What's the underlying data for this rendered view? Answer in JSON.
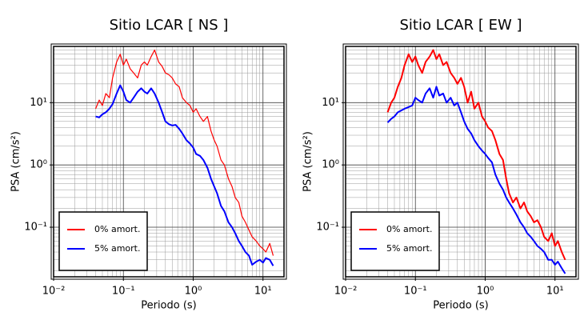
{
  "chart_data": [
    {
      "type": "line",
      "title": "Sitio LCAR [ NS ]",
      "xlabel": "Periodo (s)",
      "ylabel": "PSA (cm/s²)",
      "xscale": "log",
      "yscale": "log",
      "grid": true,
      "legend": "lower left",
      "xlim": [
        0.01,
        20
      ],
      "ylim": [
        0.016,
        80
      ],
      "xticks": [
        {
          "value": 0.01,
          "label": "10⁻²"
        },
        {
          "value": 0.1,
          "label": "10⁻¹"
        },
        {
          "value": 1,
          "label": "10⁰"
        },
        {
          "value": 10,
          "label": "10¹"
        }
      ],
      "yticks": [
        {
          "value": 0.1,
          "label": "10⁻¹"
        },
        {
          "value": 1,
          "label": "10⁰"
        },
        {
          "value": 10,
          "label": "10¹"
        }
      ],
      "x": [
        0.04,
        0.045,
        0.05,
        0.056,
        0.063,
        0.07,
        0.08,
        0.09,
        0.1,
        0.11,
        0.125,
        0.14,
        0.16,
        0.18,
        0.2,
        0.22,
        0.25,
        0.28,
        0.32,
        0.36,
        0.4,
        0.45,
        0.5,
        0.56,
        0.63,
        0.7,
        0.8,
        0.9,
        1.0,
        1.1,
        1.25,
        1.4,
        1.6,
        1.8,
        2.0,
        2.2,
        2.5,
        2.8,
        3.2,
        3.6,
        4.0,
        4.5,
        5.0,
        5.6,
        6.3,
        7.0,
        8.0,
        9.0,
        10,
        11,
        12.5,
        14
      ],
      "series": [
        {
          "name": "0% amort.",
          "color": "#ff0000",
          "width": 1.2,
          "values": [
            8,
            11,
            9,
            14,
            12,
            25,
            45,
            60,
            40,
            50,
            35,
            30,
            25,
            40,
            45,
            40,
            55,
            70,
            45,
            38,
            30,
            28,
            25,
            20,
            18,
            12,
            10,
            9,
            7,
            8,
            6,
            5,
            6,
            3.5,
            2.5,
            2.0,
            1.2,
            1.0,
            0.6,
            0.45,
            0.3,
            0.25,
            0.15,
            0.12,
            0.09,
            0.07,
            0.06,
            0.05,
            0.045,
            0.04,
            0.055,
            0.035
          ]
        },
        {
          "name": "5% amort.",
          "color": "#0000ff",
          "width": 2,
          "values": [
            6,
            5.8,
            6.5,
            7,
            8,
            9.5,
            14,
            19,
            15,
            11,
            10,
            12,
            15,
            17,
            15,
            14,
            17,
            14,
            10,
            7,
            5,
            4.5,
            4.3,
            4.4,
            3.8,
            3.2,
            2.5,
            2.2,
            1.9,
            1.5,
            1.4,
            1.2,
            0.9,
            0.6,
            0.45,
            0.35,
            0.22,
            0.18,
            0.12,
            0.1,
            0.08,
            0.06,
            0.05,
            0.04,
            0.035,
            0.025,
            0.028,
            0.03,
            0.027,
            0.032,
            0.03,
            0.024
          ]
        }
      ]
    },
    {
      "type": "line",
      "title": "Sitio LCAR [ EW ]",
      "xlabel": "Periodo (s)",
      "ylabel": "PSA (cm/s²)",
      "xscale": "log",
      "yscale": "log",
      "grid": true,
      "legend": "lower left",
      "xlim": [
        0.01,
        20
      ],
      "ylim": [
        0.016,
        80
      ],
      "xticks": [
        {
          "value": 0.01,
          "label": "10⁻²"
        },
        {
          "value": 0.1,
          "label": "10⁻¹"
        },
        {
          "value": 1,
          "label": "10⁰"
        },
        {
          "value": 10,
          "label": "10¹"
        }
      ],
      "yticks": [
        {
          "value": 0.1,
          "label": "10⁻¹"
        },
        {
          "value": 1,
          "label": "10⁰"
        },
        {
          "value": 10,
          "label": "10¹"
        }
      ],
      "x": [
        0.04,
        0.045,
        0.05,
        0.056,
        0.063,
        0.07,
        0.08,
        0.09,
        0.1,
        0.11,
        0.125,
        0.14,
        0.16,
        0.18,
        0.2,
        0.22,
        0.25,
        0.28,
        0.32,
        0.36,
        0.4,
        0.45,
        0.5,
        0.56,
        0.63,
        0.7,
        0.8,
        0.9,
        1.0,
        1.1,
        1.25,
        1.4,
        1.6,
        1.8,
        2.0,
        2.2,
        2.5,
        2.8,
        3.2,
        3.6,
        4.0,
        4.5,
        5.0,
        5.6,
        6.3,
        7.0,
        8.0,
        9.0,
        10,
        11,
        12.5,
        14
      ],
      "series": [
        {
          "name": "0% amort.",
          "color": "#ff0000",
          "width": 2,
          "values": [
            7,
            10,
            12,
            18,
            25,
            40,
            60,
            45,
            55,
            40,
            30,
            45,
            55,
            70,
            50,
            60,
            40,
            45,
            30,
            25,
            20,
            25,
            18,
            10,
            15,
            8,
            10,
            6,
            5,
            4,
            3.5,
            2.5,
            1.5,
            1.2,
            0.6,
            0.35,
            0.25,
            0.3,
            0.2,
            0.25,
            0.18,
            0.15,
            0.12,
            0.13,
            0.1,
            0.07,
            0.06,
            0.08,
            0.05,
            0.06,
            0.04,
            0.03
          ]
        },
        {
          "name": "5% amort.",
          "color": "#0000ff",
          "width": 2,
          "values": [
            4.8,
            5.5,
            6,
            7,
            7.5,
            8,
            8.5,
            9,
            12,
            11,
            10,
            14,
            17,
            12,
            18,
            13,
            14,
            10,
            12,
            9,
            10,
            7,
            5,
            3.8,
            3.2,
            2.5,
            2,
            1.7,
            1.5,
            1.3,
            1.1,
            0.7,
            0.5,
            0.4,
            0.3,
            0.25,
            0.2,
            0.16,
            0.12,
            0.1,
            0.08,
            0.07,
            0.06,
            0.05,
            0.045,
            0.04,
            0.03,
            0.03,
            0.025,
            0.028,
            0.022,
            0.018
          ]
        }
      ]
    }
  ]
}
